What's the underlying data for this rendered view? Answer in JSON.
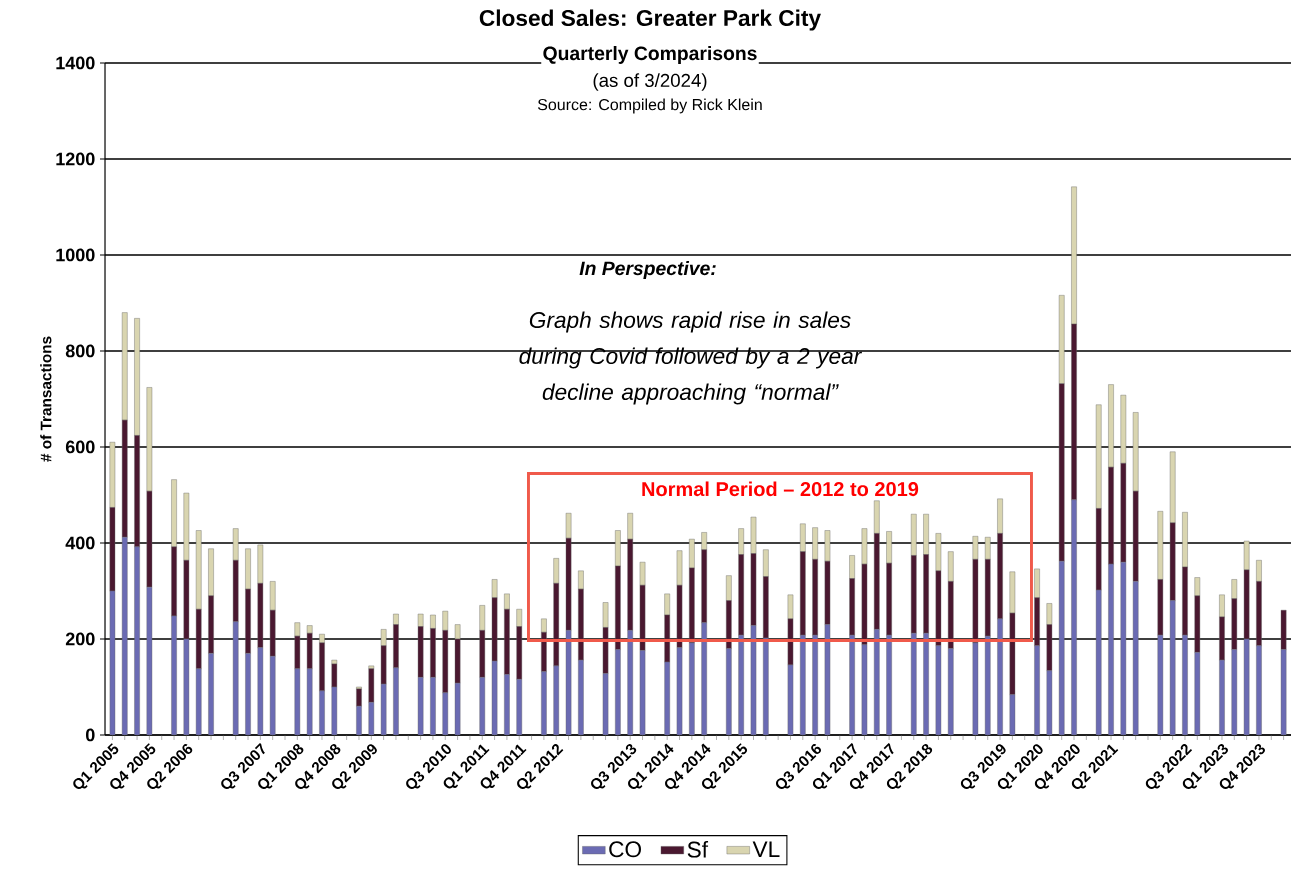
{
  "chart_data": {
    "type": "bar",
    "stacked": true,
    "title": "Closed Sales: Greater Park City",
    "subtitle": "Quarterly Comparisons",
    "ylabel": "# of Transactions",
    "annotations": [
      "(as of 3/2024)",
      "Source: Compiled by Rick Klein",
      "In Perspective:",
      "Graph shows rapid rise in sales during Covid followed by a 2 year decline approaching “normal”",
      "Normal Period  – 2012 to 2019"
    ],
    "categories": [
      "Q1 2005",
      null,
      null,
      "Q4 2005",
      null,
      null,
      "Q2 2006",
      null,
      null,
      null,
      null,
      null,
      "Q3 2007",
      null,
      null,
      "Q1 2008",
      null,
      null,
      "Q4 2008",
      null,
      null,
      "Q2 2009",
      null,
      null,
      null,
      null,
      null,
      "Q3 2010",
      null,
      null,
      "Q1 2011",
      null,
      null,
      "Q4 2011",
      null,
      null,
      "Q2 2012",
      null,
      null,
      null,
      null,
      null,
      "Q3 2013",
      null,
      null,
      "Q1 2014",
      null,
      null,
      "Q4 2014",
      null,
      null,
      "Q2 2015",
      null,
      null,
      null,
      null,
      null,
      "Q3 2016",
      null,
      null,
      "Q1 2017",
      null,
      null,
      "Q4 2017",
      null,
      null,
      "Q2 2018",
      null,
      null,
      null,
      null,
      null,
      "Q3 2019",
      null,
      null,
      "Q1 2020",
      null,
      null,
      "Q4 2020",
      null,
      null,
      "Q2 2021",
      null,
      null,
      null,
      null,
      null,
      "Q3 2022",
      null,
      null,
      "Q1 2023",
      null,
      null,
      "Q4 2023",
      null,
      null
    ],
    "series": [
      {
        "name": "CO",
        "color": "#6b6bb3",
        "values": [
          300,
          412,
          392,
          308,
          null,
          248,
          200,
          138,
          170,
          null,
          236,
          170,
          182,
          164,
          null,
          138,
          138,
          92,
          100,
          null,
          60,
          68,
          106,
          140,
          null,
          120,
          120,
          88,
          108,
          null,
          120,
          154,
          126,
          116,
          null,
          132,
          144,
          218,
          156,
          null,
          128,
          178,
          218,
          176,
          null,
          152,
          182,
          192,
          234,
          null,
          180,
          208,
          228,
          202,
          null,
          146,
          208,
          208,
          230,
          null,
          208,
          188,
          220,
          208,
          null,
          212,
          212,
          186,
          180,
          null,
          192,
          206,
          242,
          84,
          null,
          186,
          134,
          362,
          490,
          null,
          302,
          356,
          360,
          320,
          null,
          208,
          280,
          208,
          172,
          null,
          156,
          178,
          200,
          186,
          null,
          178
        ]
      },
      {
        "name": "Sf",
        "color": "#4a1830",
        "values": [
          174,
          244,
          232,
          200,
          null,
          144,
          164,
          124,
          120,
          null,
          128,
          134,
          134,
          96,
          null,
          68,
          74,
          100,
          48,
          null,
          36,
          70,
          80,
          90,
          null,
          106,
          102,
          130,
          92,
          null,
          98,
          132,
          136,
          110,
          null,
          82,
          172,
          192,
          148,
          null,
          96,
          174,
          190,
          136,
          null,
          98,
          130,
          156,
          152,
          null,
          100,
          168,
          150,
          128,
          null,
          96,
          174,
          158,
          132,
          null,
          118,
          168,
          200,
          150,
          null,
          162,
          164,
          156,
          140,
          null,
          174,
          160,
          178,
          170,
          null,
          100,
          96,
          370,
          366,
          null,
          170,
          202,
          206,
          188,
          null,
          116,
          162,
          142,
          118,
          null,
          90,
          106,
          144,
          134,
          null,
          82
        ]
      },
      {
        "name": "VL",
        "color": "#d9d5b0",
        "values": [
          136,
          224,
          244,
          216,
          null,
          140,
          140,
          164,
          98,
          null,
          66,
          84,
          80,
          60,
          null,
          28,
          16,
          18,
          8,
          null,
          4,
          6,
          34,
          22,
          null,
          26,
          28,
          40,
          30,
          null,
          52,
          38,
          32,
          36,
          null,
          28,
          52,
          52,
          38,
          null,
          52,
          74,
          54,
          48,
          null,
          44,
          72,
          60,
          36,
          null,
          52,
          54,
          76,
          56,
          null,
          50,
          58,
          66,
          64,
          null,
          48,
          74,
          68,
          66,
          null,
          86,
          84,
          78,
          62,
          null,
          48,
          46,
          72,
          86,
          null,
          60,
          44,
          184,
          286,
          null,
          216,
          172,
          142,
          164,
          null,
          142,
          148,
          114,
          38,
          null,
          46,
          40,
          60,
          44,
          null,
          null
        ]
      }
    ],
    "ylim": [
      0,
      1400
    ],
    "yticks": [
      0,
      200,
      400,
      600,
      800,
      1000,
      1200,
      1400
    ],
    "grid": "y",
    "legend": "bottom"
  }
}
